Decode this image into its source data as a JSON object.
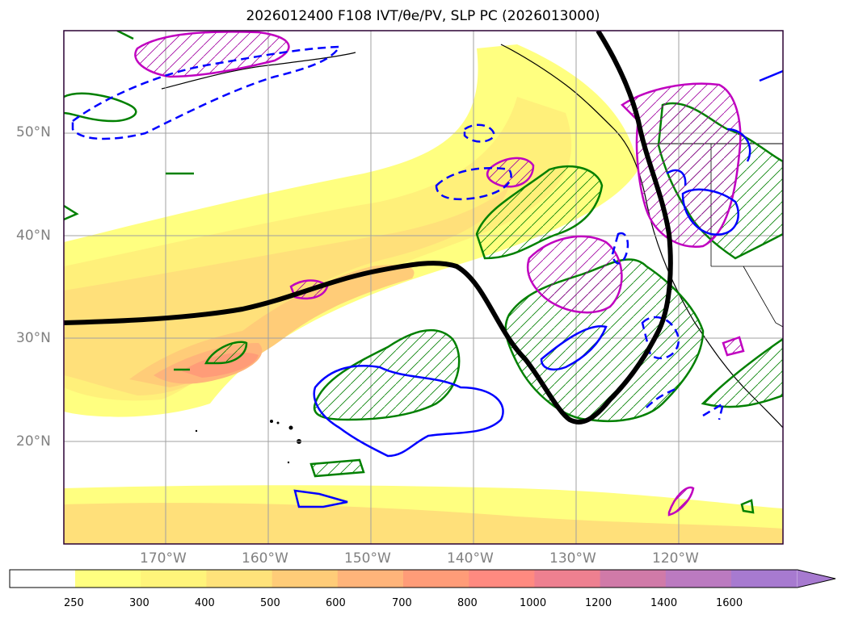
{
  "title": "2026012400 F108 IVT/θe/PV, SLP PC (2026013000)",
  "latitude_labels": [
    "50°N",
    "40°N",
    "30°N",
    "20°N"
  ],
  "longitude_labels": [
    "170°W",
    "160°W",
    "150°W",
    "140°W",
    "130°W",
    "120°W"
  ],
  "colorbar": {
    "ticks": [
      "250",
      "300",
      "400",
      "500",
      "600",
      "700",
      "800",
      "1000",
      "1200",
      "1400",
      "1600"
    ],
    "colors": [
      "#ffff80",
      "#fff47a",
      "#ffe27a",
      "#ffcc78",
      "#ffb47a",
      "#ff9c78",
      "#ff8a80",
      "#ee8090",
      "#d07aa8",
      "#bb7ac0",
      "#a77ad0"
    ],
    "extend": "max"
  },
  "contour_colors": {
    "slp_pc": "#000000",
    "theta_e": "#008000",
    "pv": "#0000ff",
    "pv_alt": "#c000c0"
  }
}
